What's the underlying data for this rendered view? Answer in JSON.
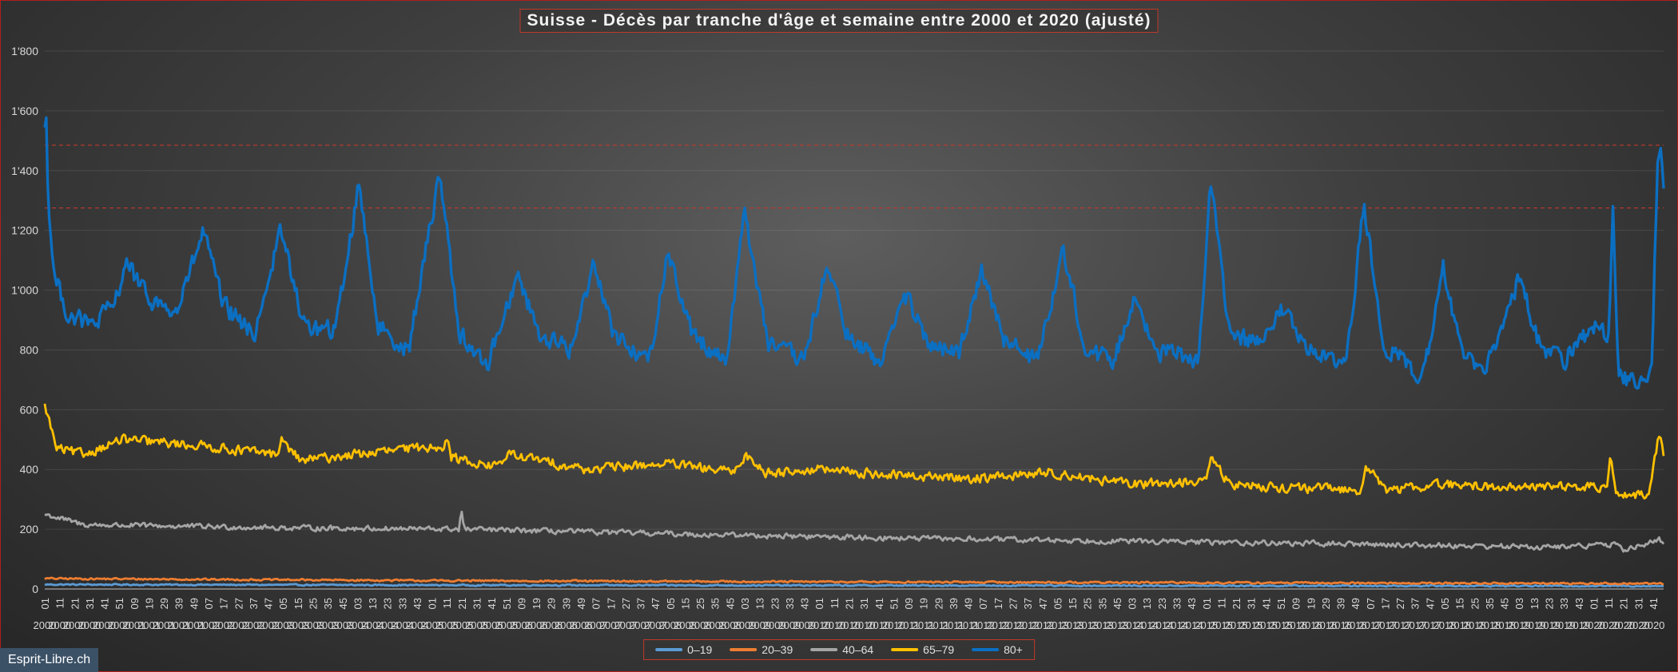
{
  "watermark": "Esprit-Libre.ch",
  "chart_data": {
    "type": "line",
    "title": "Suisse - Décès par tranche d'âge et semaine entre 2000 et 2020 (ajusté)",
    "xlabel": "",
    "ylabel": "",
    "ylim": [
      0,
      1800
    ],
    "yticks": [
      0,
      200,
      400,
      600,
      800,
      1000,
      1200,
      1400,
      1600,
      1800
    ],
    "ytick_labels": [
      "0",
      "200",
      "400",
      "600",
      "800",
      "1'000",
      "1'200",
      "1'400",
      "1'600",
      "1'800"
    ],
    "x_start": {
      "year": 2000,
      "week": 1
    },
    "x_end": {
      "year": 2020,
      "week": 48
    },
    "x_tick_every_weeks": 10,
    "grid": true,
    "legend_position": "bottom",
    "reference_lines": [
      1485,
      1275
    ],
    "series": [
      {
        "name": "0–19",
        "color": "#5b9bd5",
        "keypoints": [
          [
            2000.0,
            15
          ],
          [
            2005.0,
            13
          ],
          [
            2010.0,
            12
          ],
          [
            2015.0,
            11
          ],
          [
            2020.9,
            10
          ]
        ],
        "noise": 3
      },
      {
        "name": "20–39",
        "color": "#ed7d31",
        "keypoints": [
          [
            2000.0,
            35
          ],
          [
            2005.0,
            28
          ],
          [
            2010.0,
            24
          ],
          [
            2015.0,
            21
          ],
          [
            2020.9,
            18
          ]
        ],
        "noise": 4
      },
      {
        "name": "40–64",
        "color": "#a5a5a5",
        "keypoints": [
          [
            2000.0,
            250
          ],
          [
            2000.5,
            215
          ],
          [
            2003.0,
            205
          ],
          [
            2005.35,
            200
          ],
          [
            2005.38,
            270
          ],
          [
            2005.41,
            200
          ],
          [
            2008.0,
            185
          ],
          [
            2011.0,
            170
          ],
          [
            2014.0,
            160
          ],
          [
            2017.0,
            150
          ],
          [
            2019.5,
            140
          ],
          [
            2020.25,
            150
          ],
          [
            2020.4,
            130
          ],
          [
            2020.85,
            165
          ],
          [
            2020.92,
            140
          ]
        ],
        "noise": 12
      },
      {
        "name": "65–79",
        "color": "#ffc000",
        "keypoints": [
          [
            2000.0,
            610
          ],
          [
            2000.03,
            590
          ],
          [
            2000.15,
            470
          ],
          [
            2000.5,
            450
          ],
          [
            2001.0,
            500
          ],
          [
            2002.0,
            480
          ],
          [
            2003.0,
            450
          ],
          [
            2003.05,
            500
          ],
          [
            2003.3,
            430
          ],
          [
            2004.0,
            450
          ],
          [
            2005.15,
            480
          ],
          [
            2005.18,
            520
          ],
          [
            2005.25,
            440
          ],
          [
            2005.8,
            410
          ],
          [
            2006.0,
            450
          ],
          [
            2007.0,
            400
          ],
          [
            2008.0,
            420
          ],
          [
            2008.9,
            390
          ],
          [
            2009.05,
            450
          ],
          [
            2009.3,
            390
          ],
          [
            2010.0,
            400
          ],
          [
            2011.0,
            380
          ],
          [
            2012.0,
            370
          ],
          [
            2013.0,
            390
          ],
          [
            2014.0,
            350
          ],
          [
            2015.0,
            360
          ],
          [
            2015.05,
            440
          ],
          [
            2015.3,
            350
          ],
          [
            2016.0,
            340
          ],
          [
            2017.0,
            330
          ],
          [
            2017.05,
            420
          ],
          [
            2017.3,
            330
          ],
          [
            2018.0,
            350
          ],
          [
            2019.0,
            340
          ],
          [
            2019.5,
            345
          ],
          [
            2020.18,
            340
          ],
          [
            2020.22,
            440
          ],
          [
            2020.3,
            320
          ],
          [
            2020.7,
            310
          ],
          [
            2020.85,
            520
          ],
          [
            2020.88,
            490
          ],
          [
            2020.92,
            420
          ]
        ],
        "noise": 22
      },
      {
        "name": "80+",
        "color": "#0b6fc2",
        "keypoints": [
          [
            2000.0,
            1560
          ],
          [
            2000.01,
            1680
          ],
          [
            2000.04,
            1330
          ],
          [
            2000.12,
            1050
          ],
          [
            2000.3,
            920
          ],
          [
            2000.6,
            880
          ],
          [
            2000.9,
            950
          ],
          [
            2001.05,
            1100
          ],
          [
            2001.3,
            980
          ],
          [
            2001.7,
            920
          ],
          [
            2002.05,
            1200
          ],
          [
            2002.3,
            950
          ],
          [
            2002.7,
            850
          ],
          [
            2003.05,
            1200
          ],
          [
            2003.35,
            880
          ],
          [
            2003.75,
            860
          ],
          [
            2004.06,
            1360
          ],
          [
            2004.3,
            880
          ],
          [
            2004.7,
            800
          ],
          [
            2005.1,
            1400
          ],
          [
            2005.35,
            860
          ],
          [
            2005.7,
            740
          ],
          [
            2006.1,
            1050
          ],
          [
            2006.4,
            850
          ],
          [
            2006.8,
            800
          ],
          [
            2007.1,
            1100
          ],
          [
            2007.35,
            850
          ],
          [
            2007.8,
            760
          ],
          [
            2008.05,
            1130
          ],
          [
            2008.35,
            860
          ],
          [
            2008.8,
            760
          ],
          [
            2009.03,
            1260
          ],
          [
            2009.35,
            820
          ],
          [
            2009.8,
            760
          ],
          [
            2010.1,
            1080
          ],
          [
            2010.4,
            830
          ],
          [
            2010.8,
            760
          ],
          [
            2011.1,
            990
          ],
          [
            2011.4,
            820
          ],
          [
            2011.8,
            780
          ],
          [
            2012.1,
            1080
          ],
          [
            2012.4,
            830
          ],
          [
            2012.8,
            760
          ],
          [
            2013.15,
            1130
          ],
          [
            2013.45,
            800
          ],
          [
            2013.8,
            760
          ],
          [
            2014.05,
            970
          ],
          [
            2014.4,
            800
          ],
          [
            2014.9,
            770
          ],
          [
            2015.05,
            1370
          ],
          [
            2015.3,
            850
          ],
          [
            2015.7,
            820
          ],
          [
            2016.0,
            940
          ],
          [
            2016.3,
            800
          ],
          [
            2016.8,
            740
          ],
          [
            2017.03,
            1280
          ],
          [
            2017.3,
            820
          ],
          [
            2017.8,
            700
          ],
          [
            2018.05,
            1100
          ],
          [
            2018.3,
            780
          ],
          [
            2018.6,
            720
          ],
          [
            2019.05,
            1050
          ],
          [
            2019.3,
            820
          ],
          [
            2019.6,
            760
          ],
          [
            2020.0,
            880
          ],
          [
            2020.2,
            850
          ],
          [
            2020.25,
            1260
          ],
          [
            2020.32,
            700
          ],
          [
            2020.6,
            710
          ],
          [
            2020.75,
            720
          ],
          [
            2020.83,
            1480
          ],
          [
            2020.88,
            1440
          ],
          [
            2020.92,
            1320
          ]
        ],
        "noise": 45
      }
    ]
  }
}
